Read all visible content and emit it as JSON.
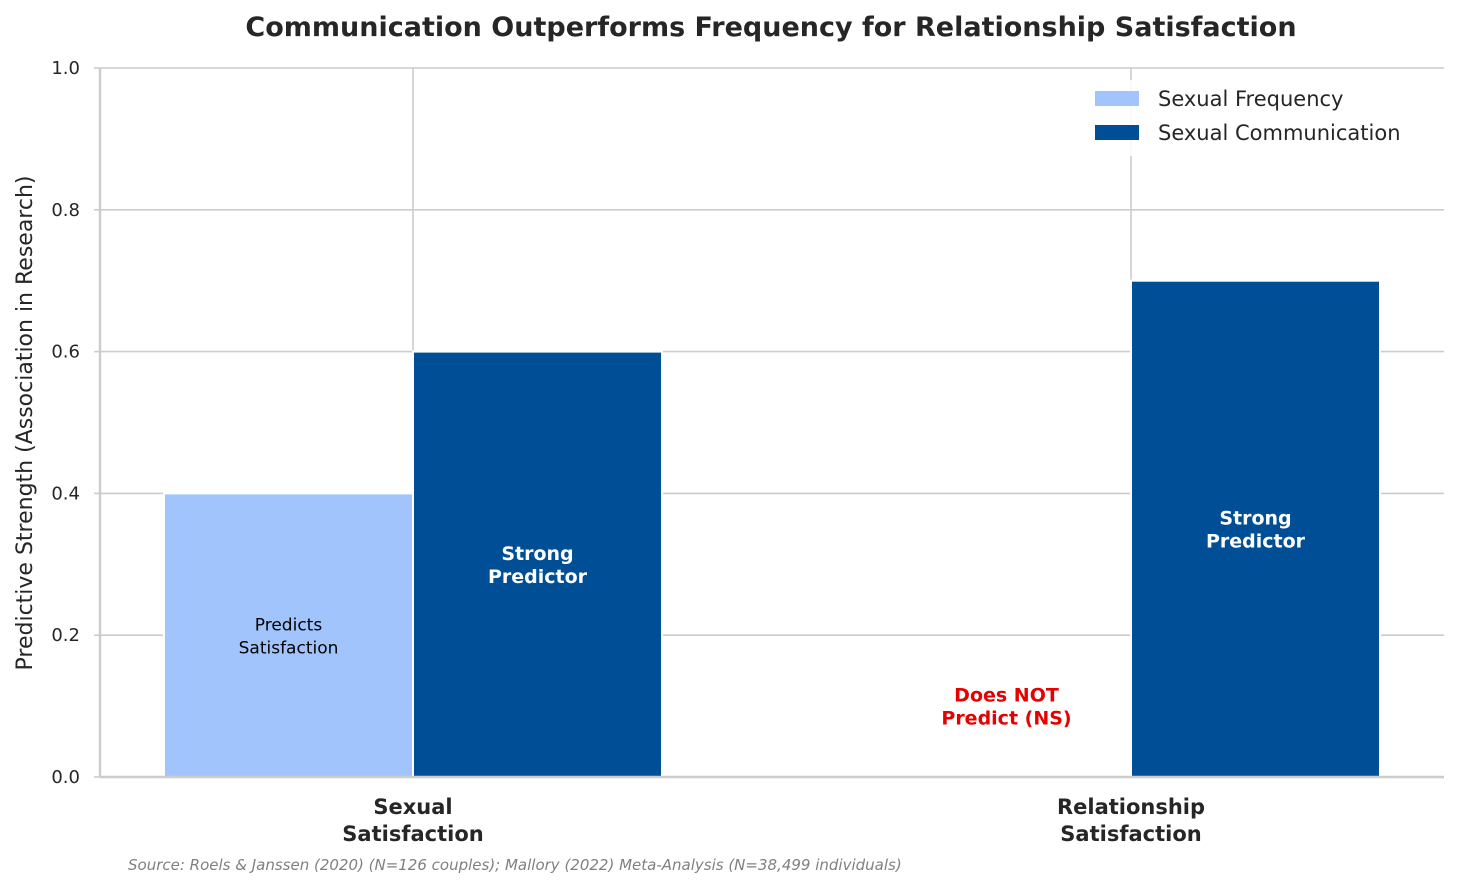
{
  "chart_data": {
    "type": "bar",
    "title": "Communication Outperforms Frequency for Relationship Satisfaction",
    "ylabel": "Predictive Strength (Association in Research)",
    "xlabel": "",
    "ylim": [
      0,
      1.0
    ],
    "yticks": [
      "0.0",
      "0.2",
      "0.4",
      "0.6",
      "0.8",
      "1.0"
    ],
    "grid": true,
    "legend_position": "top-right",
    "categories": [
      [
        "Sexual",
        "Satisfaction"
      ],
      [
        "Relationship",
        "Satisfaction"
      ]
    ],
    "series": [
      {
        "name": "Sexual Frequency",
        "color": "#a1c4fd",
        "values": [
          0.4,
          0.0
        ],
        "annotations": [
          {
            "lines": [
              "Predicts",
              "Satisfaction"
            ],
            "color": "#000000",
            "bold": false
          },
          {
            "lines": [
              "Does NOT",
              "Predict (NS)"
            ],
            "color": "#e60000",
            "bold": true
          }
        ]
      },
      {
        "name": "Sexual Communication",
        "color": "#004f96",
        "values": [
          0.6,
          0.7
        ],
        "annotations": [
          {
            "lines": [
              "Strong",
              "Predictor"
            ],
            "color": "#ffffff",
            "bold": true
          },
          {
            "lines": [
              "Strong",
              "Predictor"
            ],
            "color": "#ffffff",
            "bold": true
          }
        ]
      }
    ],
    "source": "Source: Roels & Janssen (2020) (N=126 couples); Mallory (2022) Meta-Analysis (N=38,499 individuals)"
  }
}
